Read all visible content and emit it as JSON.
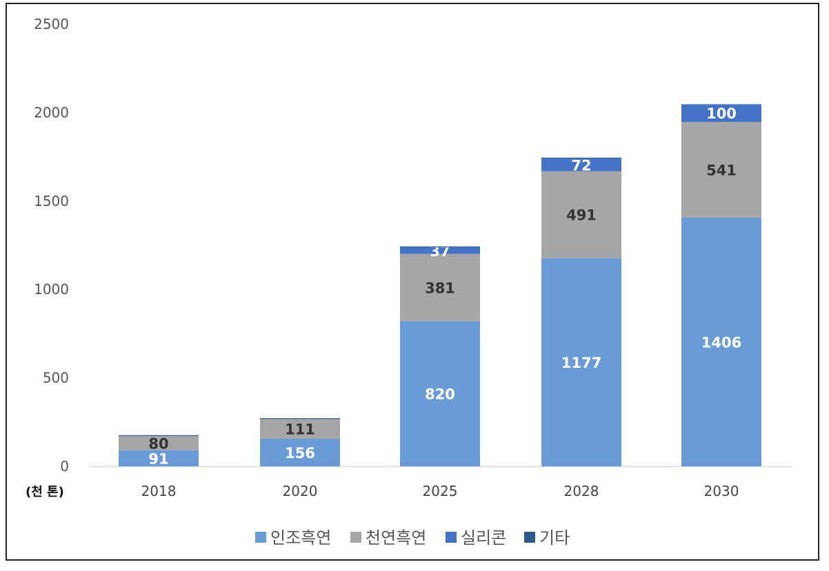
{
  "chart_data": {
    "type": "bar",
    "stacked": true,
    "title": "",
    "xlabel": "",
    "ylabel": "",
    "unit_label": "(천 톤)",
    "categories": [
      "2018",
      "2020",
      "2025",
      "2028",
      "2030"
    ],
    "ylim": [
      0,
      2500
    ],
    "yticks": [
      0,
      500,
      1000,
      1500,
      2000,
      2500
    ],
    "grid": false,
    "legend_position": "bottom",
    "series": [
      {
        "name": "인조흑연",
        "color": "#6a9bd6",
        "label_color": "#ffffff",
        "values": [
          91,
          156,
          820,
          1177,
          1406
        ],
        "labels": [
          "91",
          "156",
          "820",
          "1177",
          "1406"
        ]
      },
      {
        "name": "천연흑연",
        "color": "#a6a6a6",
        "label_color": "#333333",
        "values": [
          80,
          111,
          381,
          491,
          541
        ],
        "labels": [
          "80",
          "111",
          "381",
          "491",
          "541"
        ]
      },
      {
        "name": "실리콘",
        "color": "#4472c4",
        "label_color": "#ffffff",
        "values": [
          0,
          0,
          37,
          72,
          100
        ],
        "labels": [
          "",
          "",
          "37",
          "72",
          "100"
        ]
      },
      {
        "name": "기타",
        "color": "#2e5a8c",
        "label_color": "#ffffff",
        "values": [
          5,
          5,
          5,
          5,
          0
        ],
        "labels": [
          "",
          "",
          "",
          "",
          ""
        ]
      }
    ]
  }
}
